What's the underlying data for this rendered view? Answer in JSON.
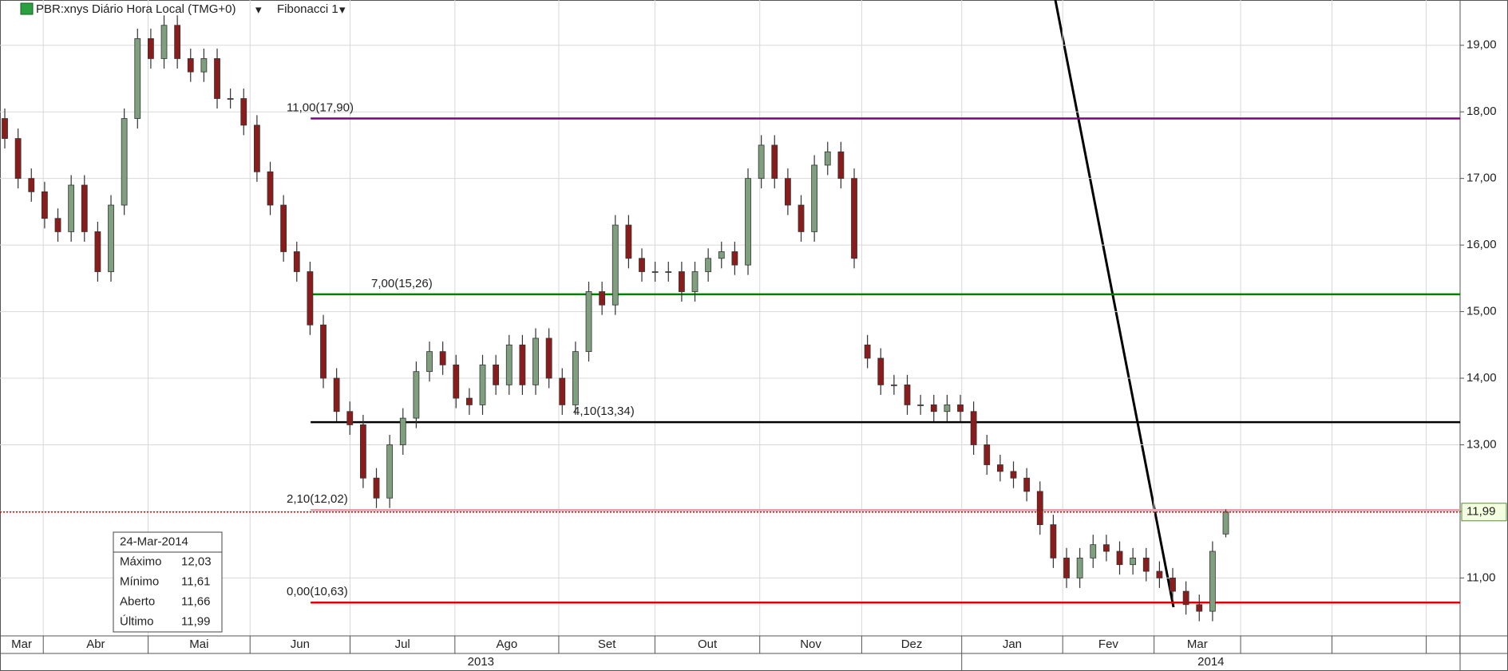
{
  "chart_data": {
    "type": "candlestick",
    "title": "PBR:xnys Diário Hora Local (TMG+0)",
    "study": "Fibonacci 1",
    "open": [
      17.9,
      17.6,
      17.0,
      16.8,
      16.4,
      16.2,
      16.9,
      16.2,
      15.6,
      16.6,
      17.9,
      19.1,
      18.8,
      19.3,
      18.8,
      18.6,
      18.8,
      18.2,
      18.2,
      17.8,
      17.1,
      16.6,
      15.9,
      15.6,
      14.8,
      14.0,
      13.5,
      13.3,
      12.5,
      12.2,
      13.0,
      13.4,
      14.1,
      14.4,
      14.2,
      13.7,
      13.6,
      14.2,
      13.9,
      14.5,
      13.9,
      14.6,
      14.0,
      13.6,
      14.4,
      15.3,
      15.1,
      16.3,
      15.8,
      15.6,
      15.6,
      15.6,
      15.3,
      15.6,
      15.8,
      15.9,
      15.7,
      17.0,
      17.5,
      17.0,
      16.6,
      16.2,
      17.2,
      17.4,
      17.0,
      14.5,
      14.3,
      13.9,
      13.9,
      13.6,
      13.6,
      13.5,
      13.6,
      13.5,
      13.0,
      12.7,
      12.6,
      12.5,
      12.3,
      11.8,
      11.3,
      11.0,
      11.3,
      11.5,
      11.4,
      11.2,
      11.3,
      11.1,
      11.0,
      10.8,
      10.6,
      10.5,
      11.66
    ],
    "high": [
      18.05,
      17.75,
      17.15,
      16.95,
      16.55,
      17.05,
      17.05,
      16.35,
      16.75,
      18.05,
      19.25,
      19.25,
      19.45,
      19.45,
      18.95,
      18.95,
      18.95,
      18.35,
      18.35,
      17.95,
      17.25,
      16.75,
      16.05,
      15.75,
      14.95,
      14.15,
      13.65,
      13.45,
      12.65,
      13.15,
      13.55,
      14.25,
      14.55,
      14.55,
      14.35,
      13.85,
      14.35,
      14.35,
      14.65,
      14.65,
      14.75,
      14.75,
      14.15,
      14.55,
      15.45,
      15.45,
      16.45,
      16.45,
      15.95,
      15.75,
      15.75,
      15.75,
      15.75,
      15.95,
      16.05,
      16.05,
      17.15,
      17.65,
      17.65,
      17.15,
      16.75,
      17.35,
      17.55,
      17.55,
      17.15,
      14.65,
      14.45,
      14.05,
      14.05,
      13.75,
      13.75,
      13.75,
      13.75,
      13.65,
      13.15,
      12.85,
      12.75,
      12.65,
      12.45,
      11.95,
      11.45,
      11.45,
      11.65,
      11.65,
      11.55,
      11.45,
      11.45,
      11.25,
      11.15,
      10.95,
      10.75,
      11.55,
      12.03
    ],
    "low": [
      17.45,
      16.85,
      16.65,
      16.25,
      16.05,
      16.05,
      16.05,
      15.45,
      15.45,
      16.45,
      17.75,
      18.65,
      18.65,
      18.65,
      18.45,
      18.45,
      18.05,
      18.05,
      17.65,
      16.95,
      16.45,
      15.75,
      15.45,
      14.65,
      13.85,
      13.35,
      13.15,
      12.35,
      12.05,
      12.05,
      12.85,
      13.25,
      13.95,
      14.05,
      13.55,
      13.45,
      13.45,
      13.75,
      13.75,
      13.75,
      13.75,
      13.85,
      13.45,
      13.45,
      14.25,
      14.95,
      14.95,
      15.65,
      15.45,
      15.45,
      15.45,
      15.15,
      15.15,
      15.45,
      15.65,
      15.55,
      15.55,
      16.85,
      16.85,
      16.45,
      16.05,
      16.05,
      17.05,
      16.85,
      15.65,
      14.15,
      13.75,
      13.75,
      13.45,
      13.45,
      13.35,
      13.35,
      13.35,
      12.85,
      12.55,
      12.45,
      12.35,
      12.15,
      11.65,
      11.15,
      10.85,
      10.85,
      11.15,
      11.25,
      11.05,
      11.05,
      10.95,
      10.85,
      10.65,
      10.45,
      10.35,
      10.35,
      11.61
    ],
    "close": [
      17.6,
      17.0,
      16.8,
      16.4,
      16.2,
      16.9,
      16.2,
      15.6,
      16.6,
      17.9,
      19.1,
      18.8,
      19.3,
      18.8,
      18.6,
      18.8,
      18.2,
      18.2,
      17.8,
      17.1,
      16.6,
      15.9,
      15.6,
      14.8,
      14.0,
      13.5,
      13.3,
      12.5,
      12.2,
      13.0,
      13.4,
      14.1,
      14.4,
      14.2,
      13.7,
      13.6,
      14.2,
      13.9,
      14.5,
      13.9,
      14.6,
      14.0,
      13.6,
      14.4,
      15.3,
      15.1,
      16.3,
      15.8,
      15.6,
      15.6,
      15.6,
      15.3,
      15.6,
      15.8,
      15.9,
      15.7,
      17.0,
      17.5,
      17.0,
      16.6,
      16.2,
      17.2,
      17.4,
      17.0,
      15.8,
      14.3,
      13.9,
      13.9,
      13.6,
      13.6,
      13.5,
      13.6,
      13.5,
      13.0,
      12.7,
      12.6,
      12.5,
      12.3,
      11.8,
      11.3,
      11.0,
      11.3,
      11.5,
      11.4,
      11.2,
      11.3,
      11.1,
      11.0,
      10.8,
      10.6,
      10.5,
      11.4,
      11.99
    ],
    "up_color": "#7f9f7f",
    "down_color": "#8b1c1c",
    "months": [
      "Mar",
      "Abr",
      "Mai",
      "Jun",
      "Jul",
      "Ago",
      "Set",
      "Out",
      "Nov",
      "Dez",
      "Jan",
      "Fev",
      "Mar",
      null,
      null,
      null
    ],
    "years": [
      "2013",
      "2014"
    ],
    "ylim": [
      10.13,
      19.68
    ],
    "yticks": [
      {
        "value": 11,
        "label": "11,00"
      },
      {
        "value": 12,
        "label": "12,00"
      },
      {
        "value": 13,
        "label": "13,00"
      },
      {
        "value": 14,
        "label": "14,00"
      },
      {
        "value": 15,
        "label": "15,00"
      },
      {
        "value": 16,
        "label": "16,00"
      },
      {
        "value": 17,
        "label": "17,00"
      },
      {
        "value": 18,
        "label": "18,00"
      },
      {
        "value": 19,
        "label": "19,00"
      }
    ],
    "grid": true,
    "fibonacci": [
      {
        "value": 17.9,
        "label": "11,00(17,90)",
        "color": "#800080"
      },
      {
        "value": 15.26,
        "label": "7,00(15,26)",
        "color": "#008000"
      },
      {
        "value": 13.34,
        "label": "4,10(13,34)",
        "color": "#000000"
      },
      {
        "value": 12.02,
        "label": "2,10(12,02)",
        "color": "#e8a0a8"
      },
      {
        "value": 10.63,
        "label": "0,00(10,63)",
        "color": "#e00000"
      }
    ],
    "last_price": {
      "value": 11.99,
      "label": "11,99"
    },
    "info": {
      "date": "24-Mar-2014",
      "rows": [
        [
          "Máximo",
          "12,03"
        ],
        [
          "Mínimo",
          "11,61"
        ],
        [
          "Aberto",
          "11,66"
        ],
        [
          "Último",
          "11,99"
        ]
      ]
    }
  }
}
